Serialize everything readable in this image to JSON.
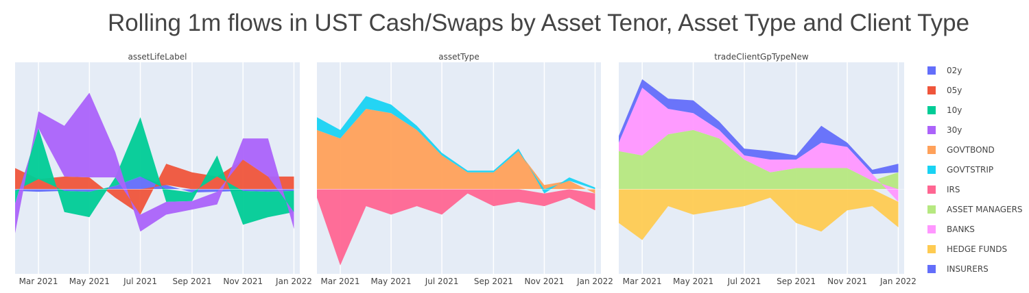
{
  "title": "Rolling 1m flows in UST Cash/Swaps by Asset Tenor, Asset Type and Client Type",
  "colors": {
    "02y": "#636EFA",
    "05y": "#EF553B",
    "10y": "#00CC96",
    "30y": "#AB63FA",
    "GOVTBOND": "#FFA15A",
    "GOVTSTRIP": "#19D3F3",
    "IRS": "#FF6692",
    "ASSET MANAGERS": "#B6E880",
    "BANKS": "#FF97FF",
    "HEDGE FUNDS": "#FECB52",
    "INSURERS": "#636EFA",
    "plot_bg": "#E5ECF6"
  },
  "legend": [
    "02y",
    "05y",
    "10y",
    "30y",
    "GOVTBOND",
    "GOVTSTRIP",
    "IRS",
    "ASSET MANAGERS",
    "BANKS",
    "HEDGE FUNDS",
    "INSURERS"
  ],
  "chart_data": [
    {
      "type": "area",
      "title": "assetLifeLabel",
      "x_ticks": [
        "Mar 2021",
        "May 2021",
        "Jul 2021",
        "Sep 2021",
        "Nov 2021",
        "Jan 2022"
      ],
      "x": [
        "2021-02",
        "2021-03",
        "2021-04",
        "2021-05",
        "2021-06",
        "2021-07",
        "2021-08",
        "2021-09",
        "2021-10",
        "2021-11",
        "2021-12",
        "2022-01"
      ],
      "ylim": [
        -100,
        150
      ],
      "series": [
        {
          "name": "02y",
          "values": [
            -2,
            -3,
            -2,
            -3,
            4,
            15,
            5,
            -4,
            -3,
            -2,
            -3,
            -2
          ]
        },
        {
          "name": "05y",
          "values": [
            25,
            12,
            15,
            14,
            -10,
            -30,
            25,
            20,
            15,
            35,
            15,
            15
          ]
        },
        {
          "name": "10y",
          "values": [
            -15,
            60,
            -25,
            -30,
            10,
            70,
            -15,
            -10,
            25,
            -40,
            -30,
            -25
          ]
        },
        {
          "name": "30y",
          "values": [
            -35,
            20,
            60,
            100,
            30,
            -20,
            -15,
            -10,
            -15,
            25,
            45,
            -20
          ]
        }
      ]
    },
    {
      "type": "area",
      "title": "assetType",
      "x_ticks": [
        "Mar 2021",
        "May 2021",
        "Jul 2021",
        "Sep 2021",
        "Nov 2021",
        "Jan 2022"
      ],
      "x": [
        "2021-02",
        "2021-03",
        "2021-04",
        "2021-05",
        "2021-06",
        "2021-07",
        "2021-08",
        "2021-09",
        "2021-10",
        "2021-11",
        "2021-12",
        "2022-01"
      ],
      "ylim": [
        -100,
        150
      ],
      "series": [
        {
          "name": "GOVTBOND",
          "values": [
            70,
            60,
            95,
            90,
            70,
            40,
            20,
            20,
            45,
            5,
            10,
            -5
          ]
        },
        {
          "name": "GOVTSTRIP",
          "values": [
            15,
            10,
            15,
            10,
            5,
            3,
            2,
            2,
            3,
            -5,
            4,
            2
          ]
        },
        {
          "name": "IRS",
          "values": [
            -10,
            -90,
            -20,
            -30,
            -20,
            -30,
            -5,
            -20,
            -15,
            -15,
            -10,
            -20
          ]
        }
      ]
    },
    {
      "type": "area",
      "title": "tradeClientGpTypeNew",
      "x_ticks": [
        "Mar 2021",
        "May 2021",
        "Jul 2021",
        "Sep 2021",
        "Nov 2021",
        "Jan 2022"
      ],
      "x": [
        "2021-02",
        "2021-03",
        "2021-04",
        "2021-05",
        "2021-06",
        "2021-07",
        "2021-08",
        "2021-09",
        "2021-10",
        "2021-11",
        "2021-12",
        "2022-01"
      ],
      "ylim": [
        -100,
        150
      ],
      "series": [
        {
          "name": "ASSET MANAGERS",
          "values": [
            45,
            40,
            65,
            70,
            60,
            35,
            20,
            25,
            25,
            25,
            10,
            20
          ]
        },
        {
          "name": "BANKS",
          "values": [
            10,
            80,
            30,
            20,
            10,
            5,
            15,
            10,
            30,
            25,
            8,
            -15
          ]
        },
        {
          "name": "HEDGE FUNDS",
          "values": [
            -40,
            -60,
            -20,
            -30,
            -25,
            -20,
            -10,
            -40,
            -50,
            -25,
            -20,
            -30
          ]
        },
        {
          "name": "INSURERS",
          "values": [
            8,
            10,
            12,
            15,
            10,
            8,
            10,
            5,
            20,
            5,
            5,
            10
          ]
        }
      ]
    }
  ]
}
